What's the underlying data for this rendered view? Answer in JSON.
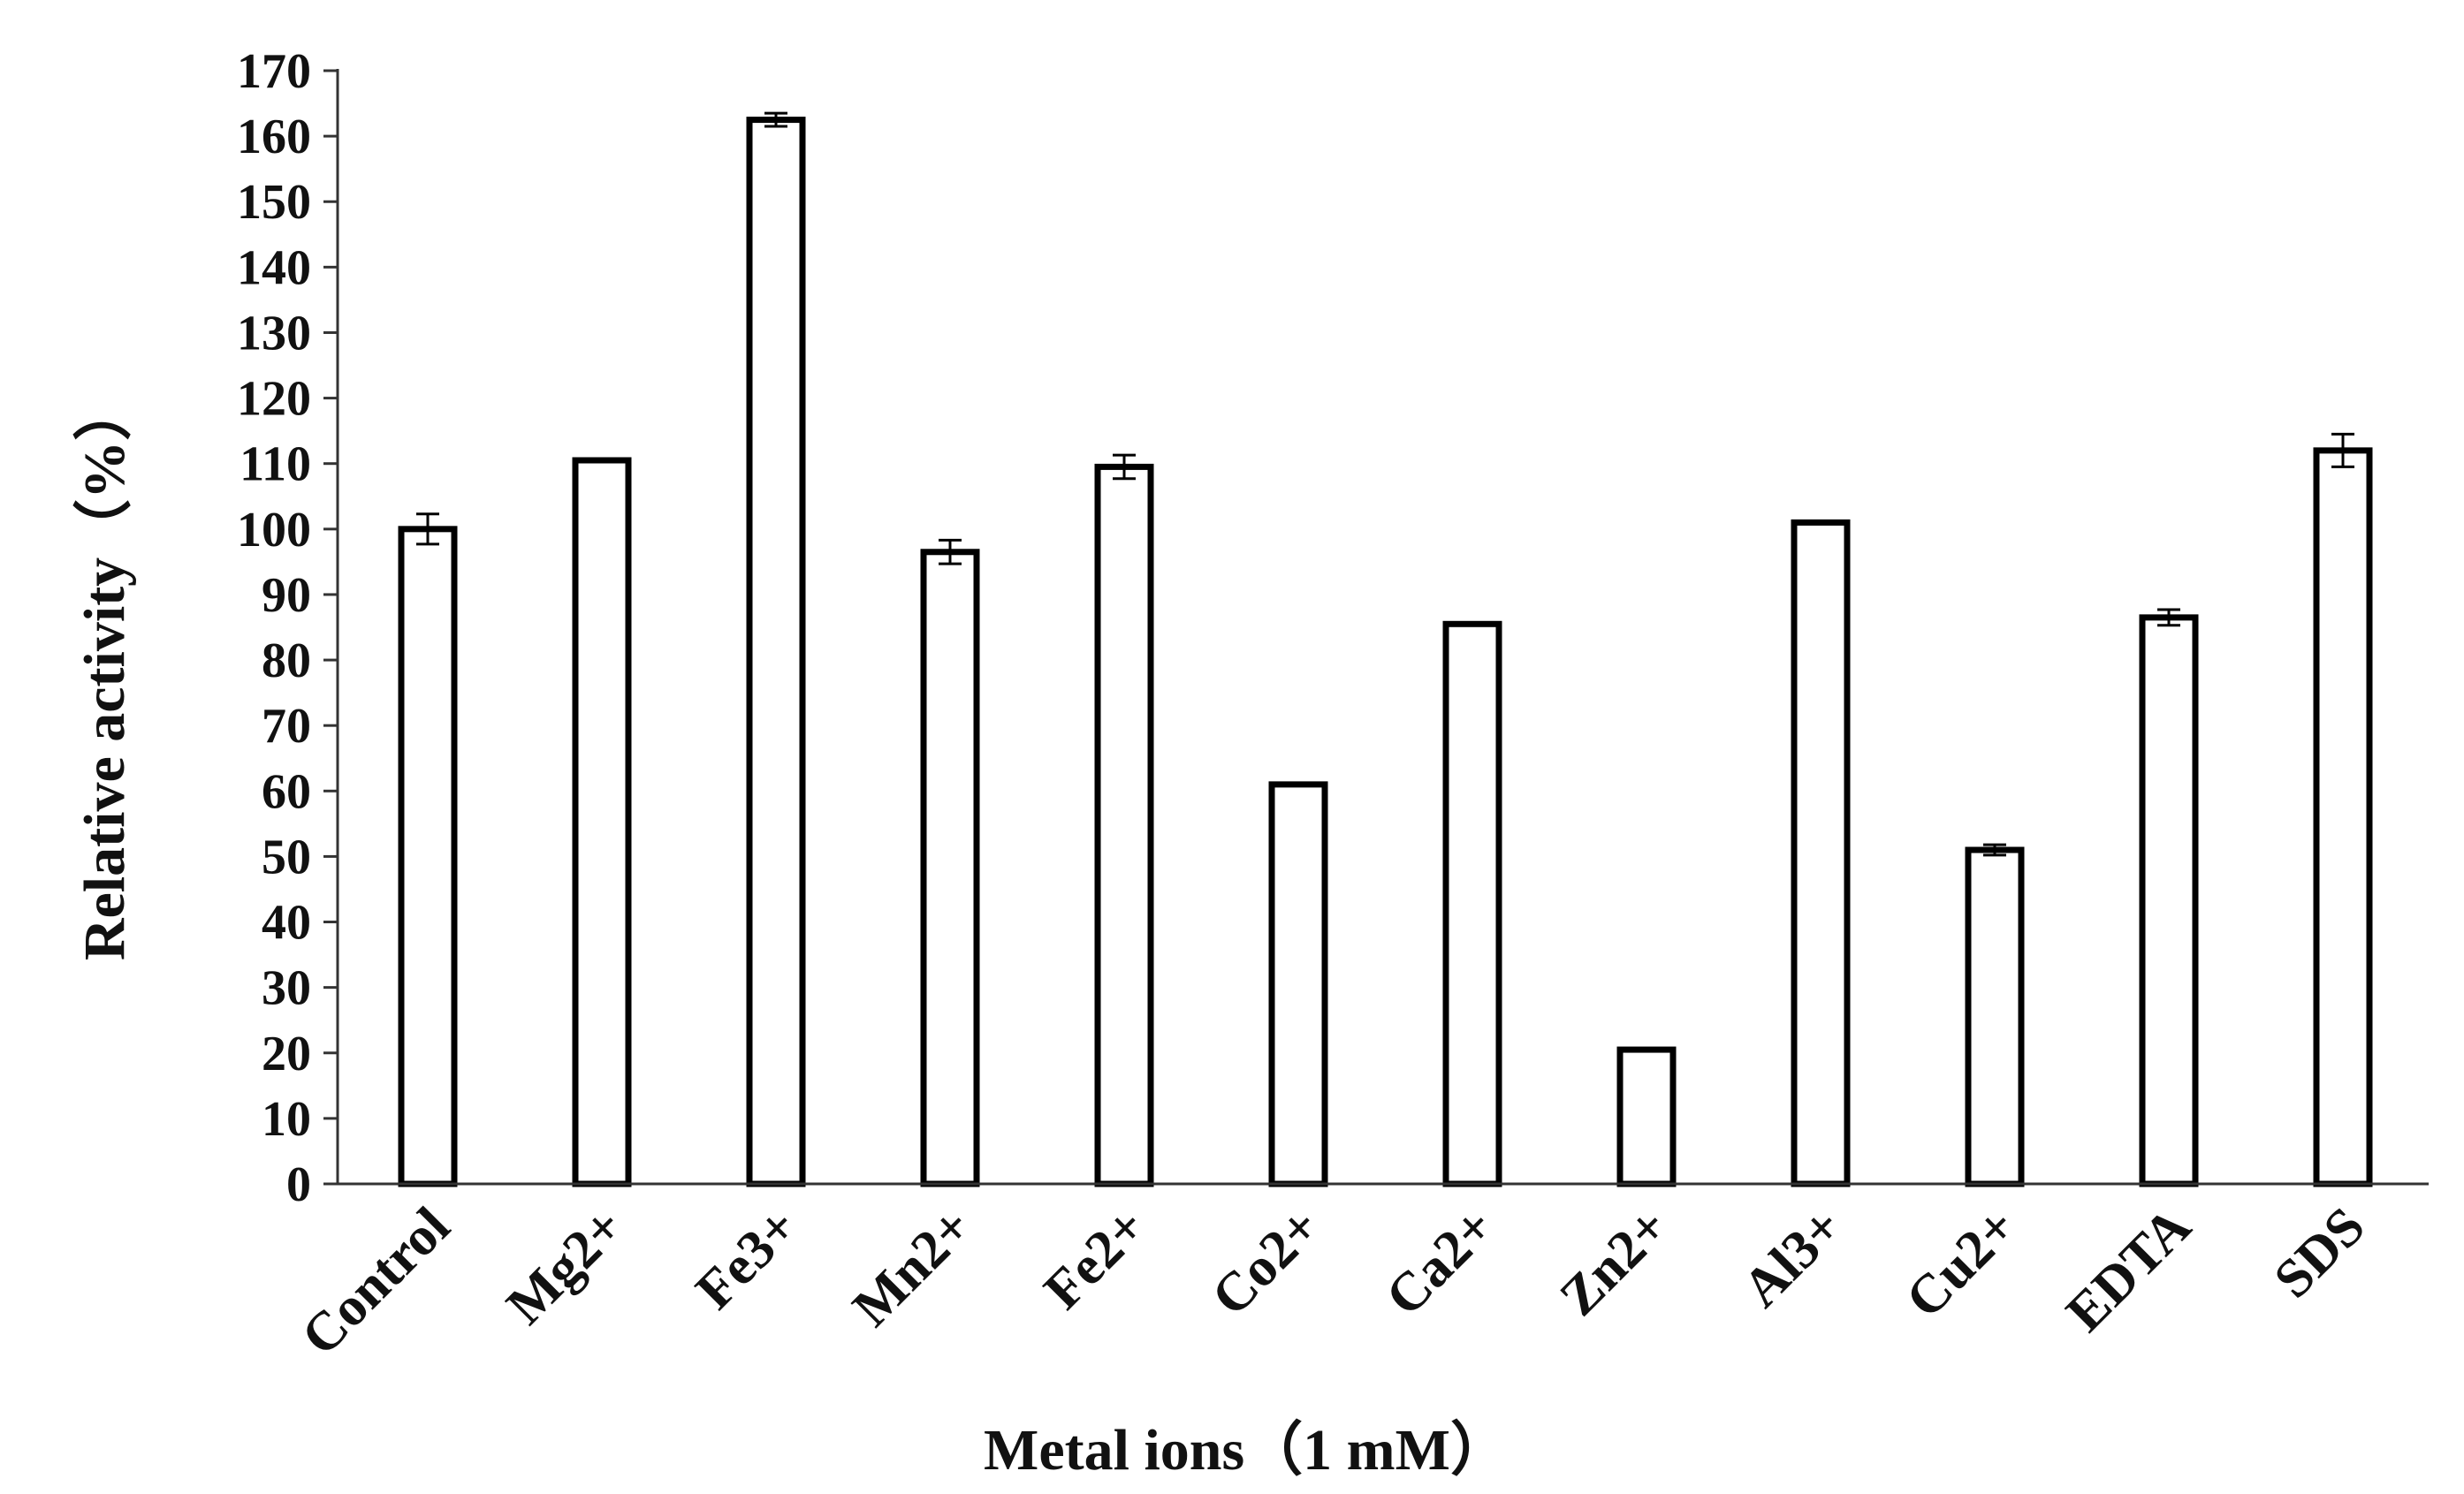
{
  "chart_data": {
    "type": "bar",
    "title": "",
    "xlabel": "Metal ions（1 mM）",
    "ylabel": "Relative activity（%）",
    "ylim": [
      0,
      170
    ],
    "yticks": [
      0,
      10,
      20,
      30,
      40,
      50,
      60,
      70,
      80,
      90,
      100,
      110,
      120,
      130,
      140,
      150,
      160,
      170
    ],
    "grid": false,
    "legend": "none",
    "categories": [
      "Control",
      "Mg2+",
      "Fe3+",
      "Mn2+",
      "Fe2+",
      "Co2+",
      "Ca2+",
      "Zn2+",
      "Al3+",
      "Cu2+",
      "EDTA",
      "SDS"
    ],
    "values": [
      100,
      110.5,
      162.5,
      96.5,
      109.5,
      61,
      85.5,
      20.5,
      101,
      51,
      86.5,
      112
    ],
    "errors": [
      2.3,
      0,
      1,
      1.8,
      1.8,
      0,
      0,
      0,
      0,
      0.8,
      1.2,
      2.5
    ]
  }
}
